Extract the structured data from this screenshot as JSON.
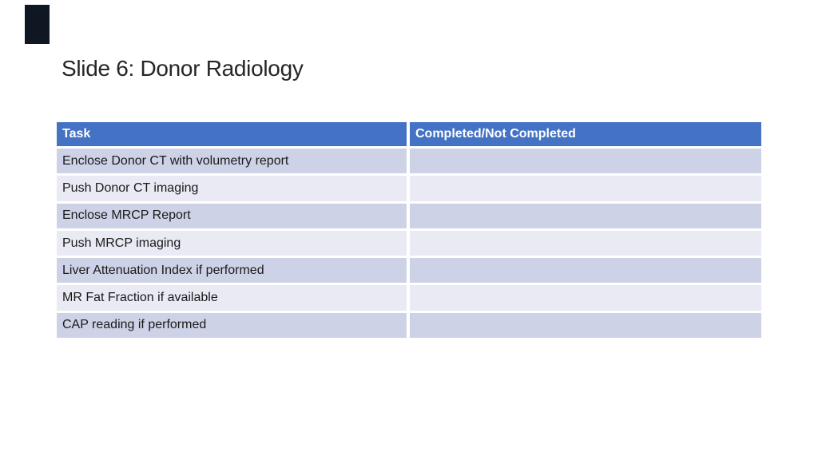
{
  "slide": {
    "title": "Slide 6: Donor Radiology"
  },
  "table": {
    "headers": [
      "Task",
      "Completed/Not Completed"
    ],
    "rows": [
      {
        "task": "Enclose Donor CT with volumetry report",
        "completed": ""
      },
      {
        "task": "Push Donor CT imaging",
        "completed": ""
      },
      {
        "task": "Enclose MRCP Report",
        "completed": ""
      },
      {
        "task": "Push MRCP imaging",
        "completed": ""
      },
      {
        "task": "Liver Attenuation Index if performed",
        "completed": ""
      },
      {
        "task": "MR Fat Fraction if available",
        "completed": ""
      },
      {
        "task": "CAP reading if performed",
        "completed": ""
      }
    ]
  },
  "colors": {
    "header_bg": "#4472C4",
    "header_text": "#FFFFFF",
    "row_band_dark": "#CDD2E7",
    "row_band_light": "#E9EAF4",
    "separator": "#FFFFFF",
    "body_text": "#1A1A1A",
    "title_text": "#262626",
    "corner_mark": "#0E1722",
    "background": "#FFFFFF"
  }
}
